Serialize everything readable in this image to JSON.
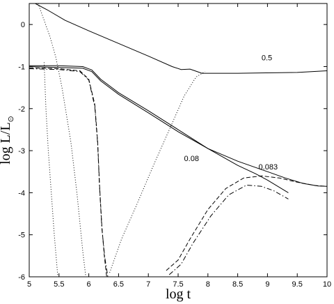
{
  "chart_data": {
    "type": "line",
    "title": "",
    "xlabel": "log t",
    "ylabel": "log L/L",
    "ylabel_sub": "⊙",
    "xlim": [
      5,
      10
    ],
    "ylim": [
      -6,
      0.5
    ],
    "xticks": [
      5,
      5.5,
      6,
      6.5,
      7,
      7.5,
      8,
      8.5,
      9,
      9.5,
      10
    ],
    "yticks": [
      0,
      -1,
      -2,
      -3,
      -4,
      -5,
      -6
    ],
    "xtick_labels": [
      "5",
      "5.5",
      "6",
      "6.5",
      "7",
      "7.5",
      "8",
      "8.5",
      "9",
      "9.5",
      "10"
    ],
    "ytick_labels": [
      "0",
      "-1",
      "-2",
      "-3",
      "-4",
      "-5",
      "-6"
    ],
    "grid": false,
    "annotations": [
      {
        "text": "0.5",
        "x": 8.9,
        "y": -0.85
      },
      {
        "text": "0.08",
        "x": 7.6,
        "y": -3.25
      },
      {
        "text": "0.083",
        "x": 8.85,
        "y": -3.45
      }
    ],
    "series": [
      {
        "style": "solid",
        "x": [
          5.1,
          5.3,
          5.6,
          6.0,
          6.5,
          7.0,
          7.4,
          7.55,
          7.7,
          7.78,
          7.9,
          8.0,
          8.5,
          9.0,
          9.5,
          10.0
        ],
        "y": [
          0.5,
          0.35,
          0.1,
          -0.15,
          -0.45,
          -0.75,
          -1.0,
          -1.07,
          -1.06,
          -1.1,
          -1.16,
          -1.16,
          -1.16,
          -1.15,
          -1.14,
          -1.1
        ]
      },
      {
        "style": "solid",
        "x": [
          5.0,
          5.5,
          5.9,
          6.05,
          6.2,
          6.5,
          7.0,
          7.5,
          8.0,
          8.5,
          8.8,
          9.0,
          9.35
        ],
        "y": [
          -0.98,
          -0.98,
          -1.0,
          -1.08,
          -1.3,
          -1.62,
          -2.05,
          -2.5,
          -2.95,
          -3.35,
          -3.55,
          -3.7,
          -4.0
        ]
      },
      {
        "style": "solid",
        "x": [
          5.0,
          5.5,
          5.9,
          6.05,
          6.2,
          6.5,
          7.0,
          7.5,
          8.0,
          8.5,
          9.0,
          9.3,
          9.6,
          9.85,
          10.0
        ],
        "y": [
          -1.0,
          -1.02,
          -1.04,
          -1.12,
          -1.34,
          -1.66,
          -2.1,
          -2.55,
          -2.95,
          -3.25,
          -3.5,
          -3.65,
          -3.78,
          -3.84,
          -3.85
        ]
      },
      {
        "style": "dashed",
        "x": [
          5.0,
          5.5,
          5.85,
          6.0,
          6.1,
          6.15,
          6.18,
          6.22,
          6.26,
          6.3
        ],
        "y": [
          -1.03,
          -1.05,
          -1.1,
          -1.3,
          -1.9,
          -2.8,
          -3.8,
          -4.8,
          -5.5,
          -6.0
        ]
      },
      {
        "style": "dashdot",
        "x": [
          5.0,
          5.5,
          5.85,
          6.0,
          6.1,
          6.15,
          6.18,
          6.22,
          6.27,
          6.32
        ],
        "y": [
          -1.05,
          -1.07,
          -1.12,
          -1.32,
          -1.95,
          -2.85,
          -3.85,
          -4.85,
          -5.55,
          -6.0
        ]
      },
      {
        "style": "dashed",
        "x": [
          7.3,
          7.5,
          7.7,
          8.0,
          8.3,
          8.6,
          8.9,
          9.2,
          9.5,
          9.8,
          10.0
        ],
        "y": [
          -5.85,
          -5.6,
          -5.1,
          -4.4,
          -3.9,
          -3.65,
          -3.6,
          -3.65,
          -3.75,
          -3.83,
          -3.85
        ]
      },
      {
        "style": "dashdot",
        "x": [
          7.35,
          7.55,
          7.75,
          8.05,
          8.35,
          8.65,
          8.9,
          9.1,
          9.35
        ],
        "y": [
          -5.95,
          -5.7,
          -5.2,
          -4.55,
          -4.05,
          -3.82,
          -3.85,
          -3.95,
          -4.15
        ]
      },
      {
        "style": "dotted",
        "x": [
          5.25,
          5.28,
          5.32,
          5.37,
          5.42,
          5.48
        ],
        "y": [
          -0.9,
          -2.0,
          -3.0,
          -4.0,
          -5.0,
          -6.0
        ]
      },
      {
        "style": "dotted",
        "x": [
          5.15,
          5.25,
          5.35,
          5.45,
          5.55,
          5.7,
          5.8,
          5.9,
          5.95
        ],
        "y": [
          0.5,
          0.1,
          -0.3,
          -0.8,
          -1.5,
          -2.8,
          -4.0,
          -5.4,
          -6.0
        ]
      },
      {
        "style": "dotted",
        "x": [
          6.35,
          6.55,
          6.8,
          7.1,
          7.4,
          7.6,
          7.8,
          7.95
        ],
        "y": [
          -5.9,
          -5.1,
          -4.3,
          -3.3,
          -2.35,
          -1.7,
          -1.25,
          -1.12
        ]
      }
    ]
  }
}
